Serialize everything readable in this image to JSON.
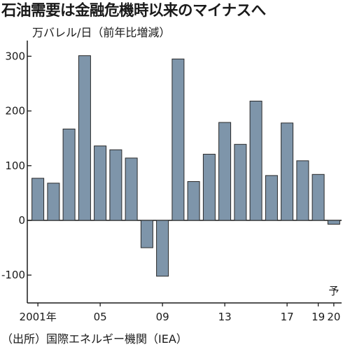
{
  "title": "石油需要は金融危機時以来のマイナスへ",
  "source": "（出所）国際エネルギー機関（IEA）",
  "colors": {
    "bar": "#7e95aa",
    "bar_stroke": "#2a2a2a",
    "axis": "#1a1a1a",
    "text": "#1a1a1a"
  },
  "chart_data": {
    "type": "bar",
    "title": "石油需要は金融危機時以来のマイナスへ",
    "ylabel": "万バレル/日（前年比増減）",
    "xlabel": "",
    "categories": [
      "2001",
      "2002",
      "2003",
      "2004",
      "2005",
      "2006",
      "2007",
      "2008",
      "2009",
      "2010",
      "2011",
      "2012",
      "2013",
      "2014",
      "2015",
      "2016",
      "2017",
      "2018",
      "2019",
      "2020"
    ],
    "values": [
      77,
      68,
      167,
      301,
      136,
      129,
      114,
      -50,
      -102,
      295,
      71,
      121,
      179,
      139,
      218,
      82,
      178,
      109,
      84,
      -7
    ],
    "xtick_labels": [
      {
        "label": "2001年",
        "category": "2001"
      },
      {
        "label": "05",
        "category": "2005"
      },
      {
        "label": "09",
        "category": "2009"
      },
      {
        "label": "13",
        "category": "2013"
      },
      {
        "label": "17",
        "category": "2017"
      },
      {
        "label": "19",
        "category": "2019"
      },
      {
        "label": "20",
        "category": "2020"
      }
    ],
    "yticks": [
      300,
      200,
      100,
      0,
      -100
    ],
    "ylim": [
      -150,
      330
    ],
    "annotations": [
      {
        "text": "予",
        "category": "2020"
      }
    ],
    "grid": false,
    "legend": "none"
  }
}
